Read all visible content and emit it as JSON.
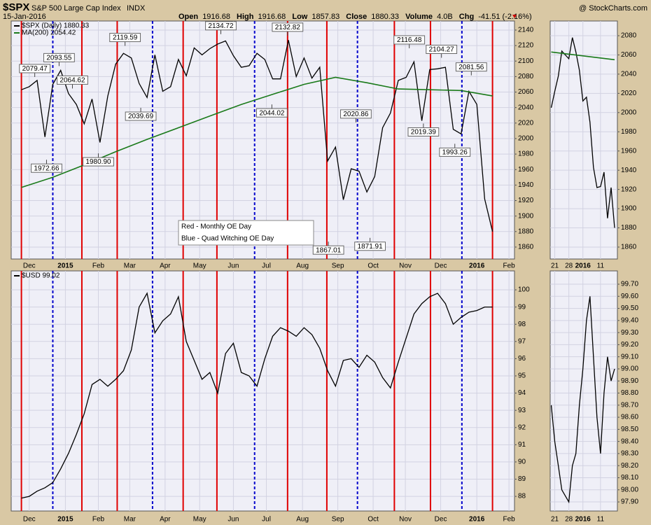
{
  "header": {
    "symbol": "$SPX",
    "name": "S&P 500 Large Cap Index",
    "exchange": "INDX",
    "brand": "@ StockCharts.com",
    "date": "15-Jan-2016",
    "quote": [
      {
        "label": "Open",
        "value": "1916.68"
      },
      {
        "label": "High",
        "value": "1916.68"
      },
      {
        "label": "Low",
        "value": "1857.83"
      },
      {
        "label": "Close",
        "value": "1880.33"
      },
      {
        "label": "Volume",
        "value": "4.0B"
      },
      {
        "label": "Chg",
        "value": "-41.51 (-2.16%)"
      }
    ]
  },
  "chart_data": [
    {
      "type": "line",
      "grid": true,
      "legend": "top-left",
      "xlim": [
        -0.3,
        63.8
      ],
      "ylim": [
        1844.6,
        2151.7
      ],
      "yticks": [
        1860,
        1880,
        1900,
        1920,
        1940,
        1960,
        1980,
        2000,
        2020,
        2040,
        2060,
        2080,
        2100,
        2120,
        2140
      ],
      "xticks": [
        {
          "value": 2.0,
          "label": "Dec"
        },
        {
          "value": 6.6,
          "label": "2015"
        },
        {
          "value": 10.8,
          "label": "Feb"
        },
        {
          "value": 14.8,
          "label": "Mar"
        },
        {
          "value": 19.3,
          "label": "Apr"
        },
        {
          "value": 23.7,
          "label": "May"
        },
        {
          "value": 28.0,
          "label": "Jun"
        },
        {
          "value": 32.2,
          "label": "Jul"
        },
        {
          "value": 36.8,
          "label": "Aug"
        },
        {
          "value": 41.3,
          "label": "Sep"
        },
        {
          "value": 45.8,
          "label": "Oct"
        },
        {
          "value": 49.9,
          "label": "Nov"
        },
        {
          "value": 54.4,
          "label": "Dec"
        },
        {
          "value": 59.0,
          "label": "2016"
        },
        {
          "value": 63.1,
          "label": "Feb"
        }
      ],
      "series": [
        {
          "name": "$SPX (Daily) 1880.33",
          "color": "#000000",
          "x": [
            1,
            2,
            3,
            4,
            5,
            6,
            7,
            8,
            9,
            10,
            11,
            12,
            13,
            14,
            15,
            16,
            17,
            18,
            19,
            20,
            21,
            22,
            23,
            24,
            25,
            26,
            27,
            28,
            29,
            30,
            31,
            32,
            33,
            34,
            35,
            36,
            37,
            38,
            39,
            40,
            41,
            42,
            43,
            44,
            45,
            46,
            47,
            48,
            49,
            50,
            51,
            52,
            53,
            54,
            55,
            56,
            57,
            58,
            59,
            60,
            61
          ],
          "values": [
            2063,
            2067,
            2075,
            2002,
            2070,
            2088,
            2058,
            2044,
            2019,
            2051,
            1995,
            2055,
            2096,
            2110,
            2104,
            2071,
            2053,
            2108,
            2061,
            2067,
            2102,
            2081,
            2117,
            2108,
            2116,
            2122,
            2126,
            2107,
            2092,
            2094,
            2110,
            2102,
            2077,
            2077,
            2127,
            2080,
            2104,
            2078,
            2092,
            1971,
            1989,
            1921,
            1961,
            1958,
            1931,
            1951,
            2014,
            2033,
            2075,
            2079,
            2099,
            2023,
            2089,
            2090,
            2092,
            2012,
            2006,
            2061,
            2044,
            1922,
            1880
          ]
        },
        {
          "name": "MA(200) 2054.42",
          "color": "#1a7a1a",
          "x": [
            1,
            5,
            9,
            13,
            17,
            21,
            25,
            29,
            33,
            37,
            41,
            45,
            49,
            53,
            57,
            61
          ],
          "values": [
            1937,
            1950,
            1966,
            1983,
            1999,
            2014,
            2029,
            2044,
            2057,
            2070,
            2079,
            2072,
            2064,
            2063,
            2062,
            2055
          ]
        }
      ],
      "annotations": [
        {
          "x": 2.7,
          "value": 2079.47,
          "label": "2079.47"
        },
        {
          "x": 5.8,
          "value": 2093.55,
          "label": "2093.55"
        },
        {
          "x": 4.2,
          "value": 1972.66,
          "label": "1972.66"
        },
        {
          "x": 7.5,
          "value": 2064.62,
          "label": "2064.62"
        },
        {
          "x": 10.8,
          "value": 1980.9,
          "label": "1980.90"
        },
        {
          "x": 14.2,
          "value": 2119.59,
          "label": "2119.59"
        },
        {
          "x": 16.2,
          "value": 2039.69,
          "label": "2039.69"
        },
        {
          "x": 26.4,
          "value": 2134.72,
          "label": "2134.72"
        },
        {
          "x": 32.9,
          "value": 2044.02,
          "label": "2044.02"
        },
        {
          "x": 34.9,
          "value": 2132.82,
          "label": "2132.82"
        },
        {
          "x": 40.1,
          "value": 1867.01,
          "label": "1867.01"
        },
        {
          "x": 43.6,
          "value": 2020.86,
          "label": "2020.86"
        },
        {
          "x": 45.4,
          "value": 1871.91,
          "label": "1871.91"
        },
        {
          "x": 50.4,
          "value": 2116.48,
          "label": "2116.48"
        },
        {
          "x": 52.2,
          "value": 2019.39,
          "label": "2019.39"
        },
        {
          "x": 54.5,
          "value": 2104.27,
          "label": "2104.27"
        },
        {
          "x": 56.2,
          "value": 1993.26,
          "label": "1993.26"
        },
        {
          "x": 58.3,
          "value": 2081.56,
          "label": "2081.56"
        }
      ],
      "event_lines": [
        {
          "name": "Red - Monthly OE Day",
          "color": "#e00000",
          "dashed": false,
          "x": [
            1.0,
            8.7,
            13.2,
            21.6,
            25.9,
            34.9,
            39.9,
            48.5,
            53.1,
            61.0
          ]
        },
        {
          "name": "Blue - Quad Witching OE Day",
          "color": "#0000cc",
          "dashed": true,
          "x": [
            5.0,
            17.7,
            30.7,
            43.8,
            57.1
          ]
        }
      ]
    },
    {
      "type": "line",
      "grid": true,
      "legend": "top-left",
      "xlim": [
        -0.3,
        63.8
      ],
      "ylim": [
        87.15,
        101.1
      ],
      "yticks": [
        88,
        89,
        90,
        91,
        92,
        93,
        94,
        95,
        96,
        97,
        98,
        99,
        100
      ],
      "xticks": [
        {
          "value": 2.0,
          "label": "Dec"
        },
        {
          "value": 6.6,
          "label": "2015"
        },
        {
          "value": 10.8,
          "label": "Feb"
        },
        {
          "value": 14.8,
          "label": "Mar"
        },
        {
          "value": 19.3,
          "label": "Apr"
        },
        {
          "value": 23.7,
          "label": "May"
        },
        {
          "value": 28.0,
          "label": "Jun"
        },
        {
          "value": 32.2,
          "label": "Jul"
        },
        {
          "value": 36.8,
          "label": "Aug"
        },
        {
          "value": 41.3,
          "label": "Sep"
        },
        {
          "value": 45.8,
          "label": "Oct"
        },
        {
          "value": 49.9,
          "label": "Nov"
        },
        {
          "value": 54.4,
          "label": "Dec"
        },
        {
          "value": 59.0,
          "label": "2016"
        },
        {
          "value": 63.1,
          "label": "Feb"
        }
      ],
      "series": [
        {
          "name": "$USD 99.02",
          "color": "#000000",
          "x": [
            1,
            2,
            3,
            4,
            5,
            6,
            7,
            8,
            9,
            10,
            11,
            12,
            13,
            14,
            15,
            16,
            17,
            18,
            19,
            20,
            21,
            22,
            23,
            24,
            25,
            26,
            27,
            28,
            29,
            30,
            31,
            32,
            33,
            34,
            35,
            36,
            37,
            38,
            39,
            40,
            41,
            42,
            43,
            44,
            45,
            46,
            47,
            48,
            49,
            50,
            51,
            52,
            53,
            54,
            55,
            56,
            57,
            58,
            59,
            60,
            61
          ],
          "values": [
            87.9,
            88.0,
            88.3,
            88.5,
            88.8,
            89.6,
            90.5,
            91.6,
            92.8,
            94.5,
            94.8,
            94.4,
            94.8,
            95.3,
            96.5,
            99.0,
            99.8,
            97.5,
            98.2,
            98.6,
            99.6,
            97.0,
            95.9,
            94.8,
            95.2,
            94.0,
            96.3,
            96.9,
            95.2,
            95.0,
            94.4,
            96.0,
            97.3,
            97.8,
            97.6,
            97.3,
            97.8,
            97.4,
            96.6,
            95.3,
            94.4,
            95.9,
            96.0,
            95.5,
            96.2,
            95.8,
            94.9,
            94.3,
            95.8,
            97.2,
            98.6,
            99.2,
            99.6,
            99.8,
            99.2,
            98.0,
            98.4,
            98.7,
            98.8,
            99.0,
            99.0
          ]
        }
      ]
    },
    {
      "type": "line",
      "grid": true,
      "xlim": [
        -0.3,
        18.8
      ],
      "ylim": [
        1847.6,
        2095.3
      ],
      "yticks": [
        1860,
        1880,
        1900,
        1920,
        1940,
        1960,
        1980,
        2000,
        2020,
        2040,
        2060,
        2080
      ],
      "xticks": [
        {
          "value": 1,
          "label": "21"
        },
        {
          "value": 5,
          "label": "28"
        },
        {
          "value": 9,
          "label": "2016"
        },
        {
          "value": 14,
          "label": "11"
        }
      ],
      "series": [
        {
          "color": "#000000",
          "x": [
            0,
            1,
            2,
            3,
            4,
            5,
            6,
            7,
            8,
            9,
            10,
            11,
            12,
            13,
            14,
            15,
            16,
            17,
            18
          ],
          "values": [
            2005,
            2022,
            2038,
            2064,
            2060,
            2056,
            2078,
            2063,
            2044,
            2012,
            2016,
            1990,
            1943,
            1922,
            1923,
            1938,
            1890,
            1922,
            1880
          ]
        },
        {
          "color": "#1a7a1a",
          "x": [
            0,
            18
          ],
          "values": [
            2063,
            2055
          ]
        }
      ]
    },
    {
      "type": "line",
      "grid": true,
      "xlim": [
        -0.3,
        18.8
      ],
      "ylim": [
        97.825,
        99.81
      ],
      "yticks": [
        {
          "value": 97.9,
          "label": "97.90"
        },
        {
          "value": 98.0,
          "label": "98.00"
        },
        {
          "value": 98.1,
          "label": "98.10"
        },
        {
          "value": 98.2,
          "label": "98.20"
        },
        {
          "value": 98.3,
          "label": "98.30"
        },
        {
          "value": 98.4,
          "label": "98.40"
        },
        {
          "value": 98.5,
          "label": "98.50"
        },
        {
          "value": 98.6,
          "label": "98.60"
        },
        {
          "value": 98.7,
          "label": "98.70"
        },
        {
          "value": 98.8,
          "label": "98.80"
        },
        {
          "value": 98.9,
          "label": "98.90"
        },
        {
          "value": 99.0,
          "label": "99.00"
        },
        {
          "value": 99.1,
          "label": "99.10"
        },
        {
          "value": 99.2,
          "label": "99.20"
        },
        {
          "value": 99.3,
          "label": "99.30"
        },
        {
          "value": 99.4,
          "label": "99.40"
        },
        {
          "value": 99.5,
          "label": "99.50"
        },
        {
          "value": 99.6,
          "label": "99.60"
        },
        {
          "value": 99.7,
          "label": "99.70"
        }
      ],
      "xticks": [
        {
          "value": 1,
          "label": "21"
        },
        {
          "value": 5,
          "label": "28"
        },
        {
          "value": 9,
          "label": "2016"
        },
        {
          "value": 14,
          "label": "11"
        }
      ],
      "series": [
        {
          "color": "#000000",
          "x": [
            0,
            1,
            2,
            3,
            4,
            5,
            6,
            7,
            8,
            9,
            10,
            11,
            12,
            13,
            14,
            15,
            16,
            17,
            18
          ],
          "values": [
            98.7,
            98.4,
            98.2,
            98.0,
            97.95,
            97.9,
            98.2,
            98.3,
            98.7,
            99.0,
            99.4,
            99.6,
            99.1,
            98.6,
            98.3,
            98.8,
            99.1,
            98.9,
            99.0
          ]
        }
      ]
    }
  ]
}
